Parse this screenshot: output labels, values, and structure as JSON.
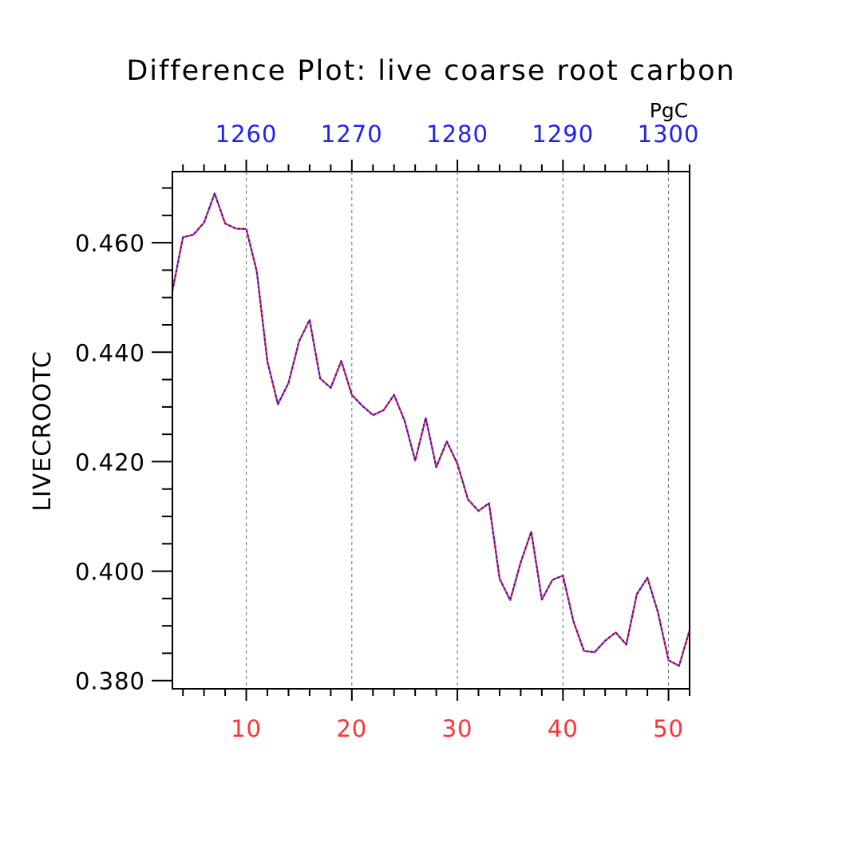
{
  "chart_data": {
    "type": "line",
    "title": "Difference Plot: live coarse root carbon",
    "ylabel": "LIVECROOTC",
    "top_axis_unit": "PgC",
    "xlim": [
      3,
      52
    ],
    "ylim": [
      0.3785,
      0.473
    ],
    "bottom_ticks": [
      10,
      20,
      30,
      40,
      50
    ],
    "top_ticks": [
      {
        "x": 10,
        "label": "1260"
      },
      {
        "x": 20,
        "label": "1270"
      },
      {
        "x": 30,
        "label": "1280"
      },
      {
        "x": 40,
        "label": "1290"
      },
      {
        "x": 50,
        "label": "1300"
      }
    ],
    "y_ticks": [
      {
        "value": 0.38,
        "label": "0.380"
      },
      {
        "value": 0.4,
        "label": "0.400"
      },
      {
        "value": 0.42,
        "label": "0.420"
      },
      {
        "value": 0.44,
        "label": "0.440"
      },
      {
        "value": 0.46,
        "label": "0.460"
      }
    ],
    "grid": "vertical dashed at major x ticks",
    "colors": {
      "bottom_axis_labels": "#ff3333",
      "top_axis_labels": "#2222ee",
      "series_a": "#ff2222",
      "series_b": "#1a1aff",
      "axes": "#000000"
    },
    "x": [
      3,
      4,
      5,
      6,
      7,
      8,
      9,
      10,
      11,
      12,
      13,
      14,
      15,
      16,
      17,
      18,
      19,
      20,
      21,
      22,
      23,
      24,
      25,
      26,
      27,
      28,
      29,
      30,
      31,
      32,
      33,
      34,
      35,
      36,
      37,
      38,
      39,
      40,
      41,
      42,
      43,
      44,
      45,
      46,
      47,
      48,
      49,
      50,
      51,
      52
    ],
    "series": [
      {
        "values": [
          0.4512,
          0.461,
          0.4615,
          0.4637,
          0.469,
          0.4635,
          0.4626,
          0.4625,
          0.4547,
          0.4383,
          0.4305,
          0.4344,
          0.442,
          0.4459,
          0.4352,
          0.4335,
          0.4384,
          0.4322,
          0.4302,
          0.4285,
          0.4294,
          0.4322,
          0.4275,
          0.4202,
          0.428,
          0.419,
          0.4237,
          0.4196,
          0.4131,
          0.411,
          0.4124,
          0.3986,
          0.3947,
          0.4016,
          0.4072,
          0.3948,
          0.3984,
          0.3992,
          0.3908,
          0.3854,
          0.3852,
          0.3873,
          0.3888,
          0.3866,
          0.3958,
          0.3988,
          0.3925,
          0.3837,
          0.3827,
          0.3892
        ]
      }
    ]
  }
}
